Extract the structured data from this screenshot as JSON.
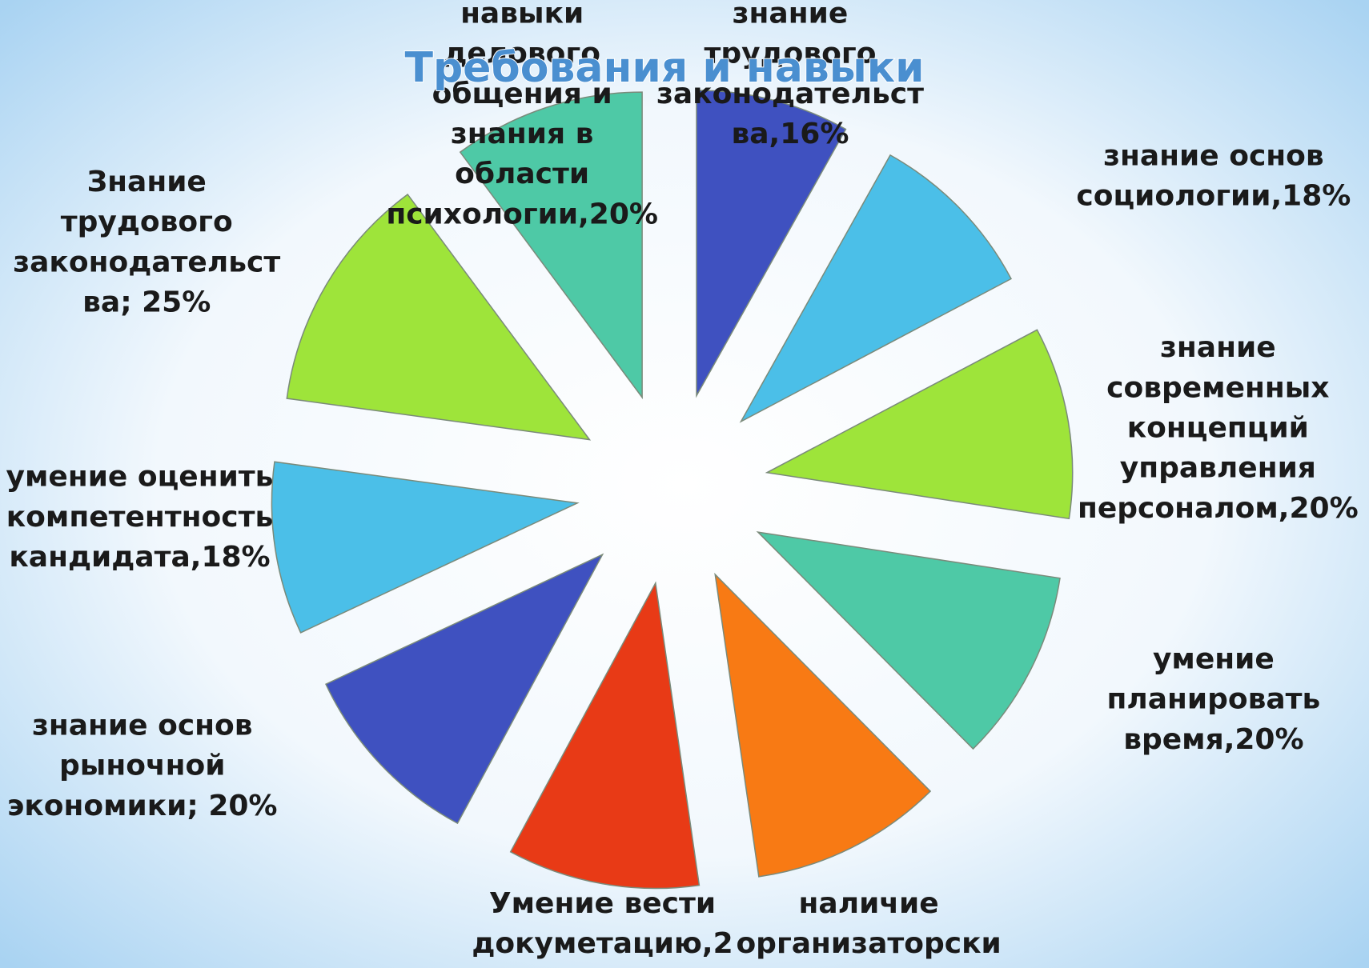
{
  "chart_data": {
    "type": "pie",
    "title": "Требования и навыки",
    "categories": [
      [
        "знание",
        "трудового",
        "законодательст",
        "ва,16%"
      ],
      [
        "знание основ",
        "социологии,18%"
      ],
      [
        "знание",
        "современных",
        "концепций",
        "управления",
        "персоналом,20%"
      ],
      [
        "умение",
        "планировать",
        "время,20%"
      ],
      [
        "наличие",
        "организаторски"
      ],
      [
        "Умение вести",
        "докуметацию,2"
      ],
      [
        "знание основ",
        "рыночной",
        "экономики; 20%"
      ],
      [
        "умение оценить",
        "компетентность",
        "кандидата,18%"
      ],
      [
        "Знание",
        "трудового",
        "законодательст",
        "ва; 25%"
      ],
      [
        "навыки",
        "делового",
        "общения и",
        "знания в",
        "области",
        "психологии,20%"
      ]
    ],
    "values": [
      16,
      18,
      20,
      20,
      20,
      20,
      20,
      18,
      25,
      20
    ],
    "colors": [
      "#3f51c0",
      "#4bbfe8",
      "#9ee43a",
      "#4ec9a6",
      "#f87a14",
      "#e83a16",
      "#3f51c0",
      "#4bbfe8",
      "#9ee43a",
      "#4ec9a6"
    ]
  }
}
